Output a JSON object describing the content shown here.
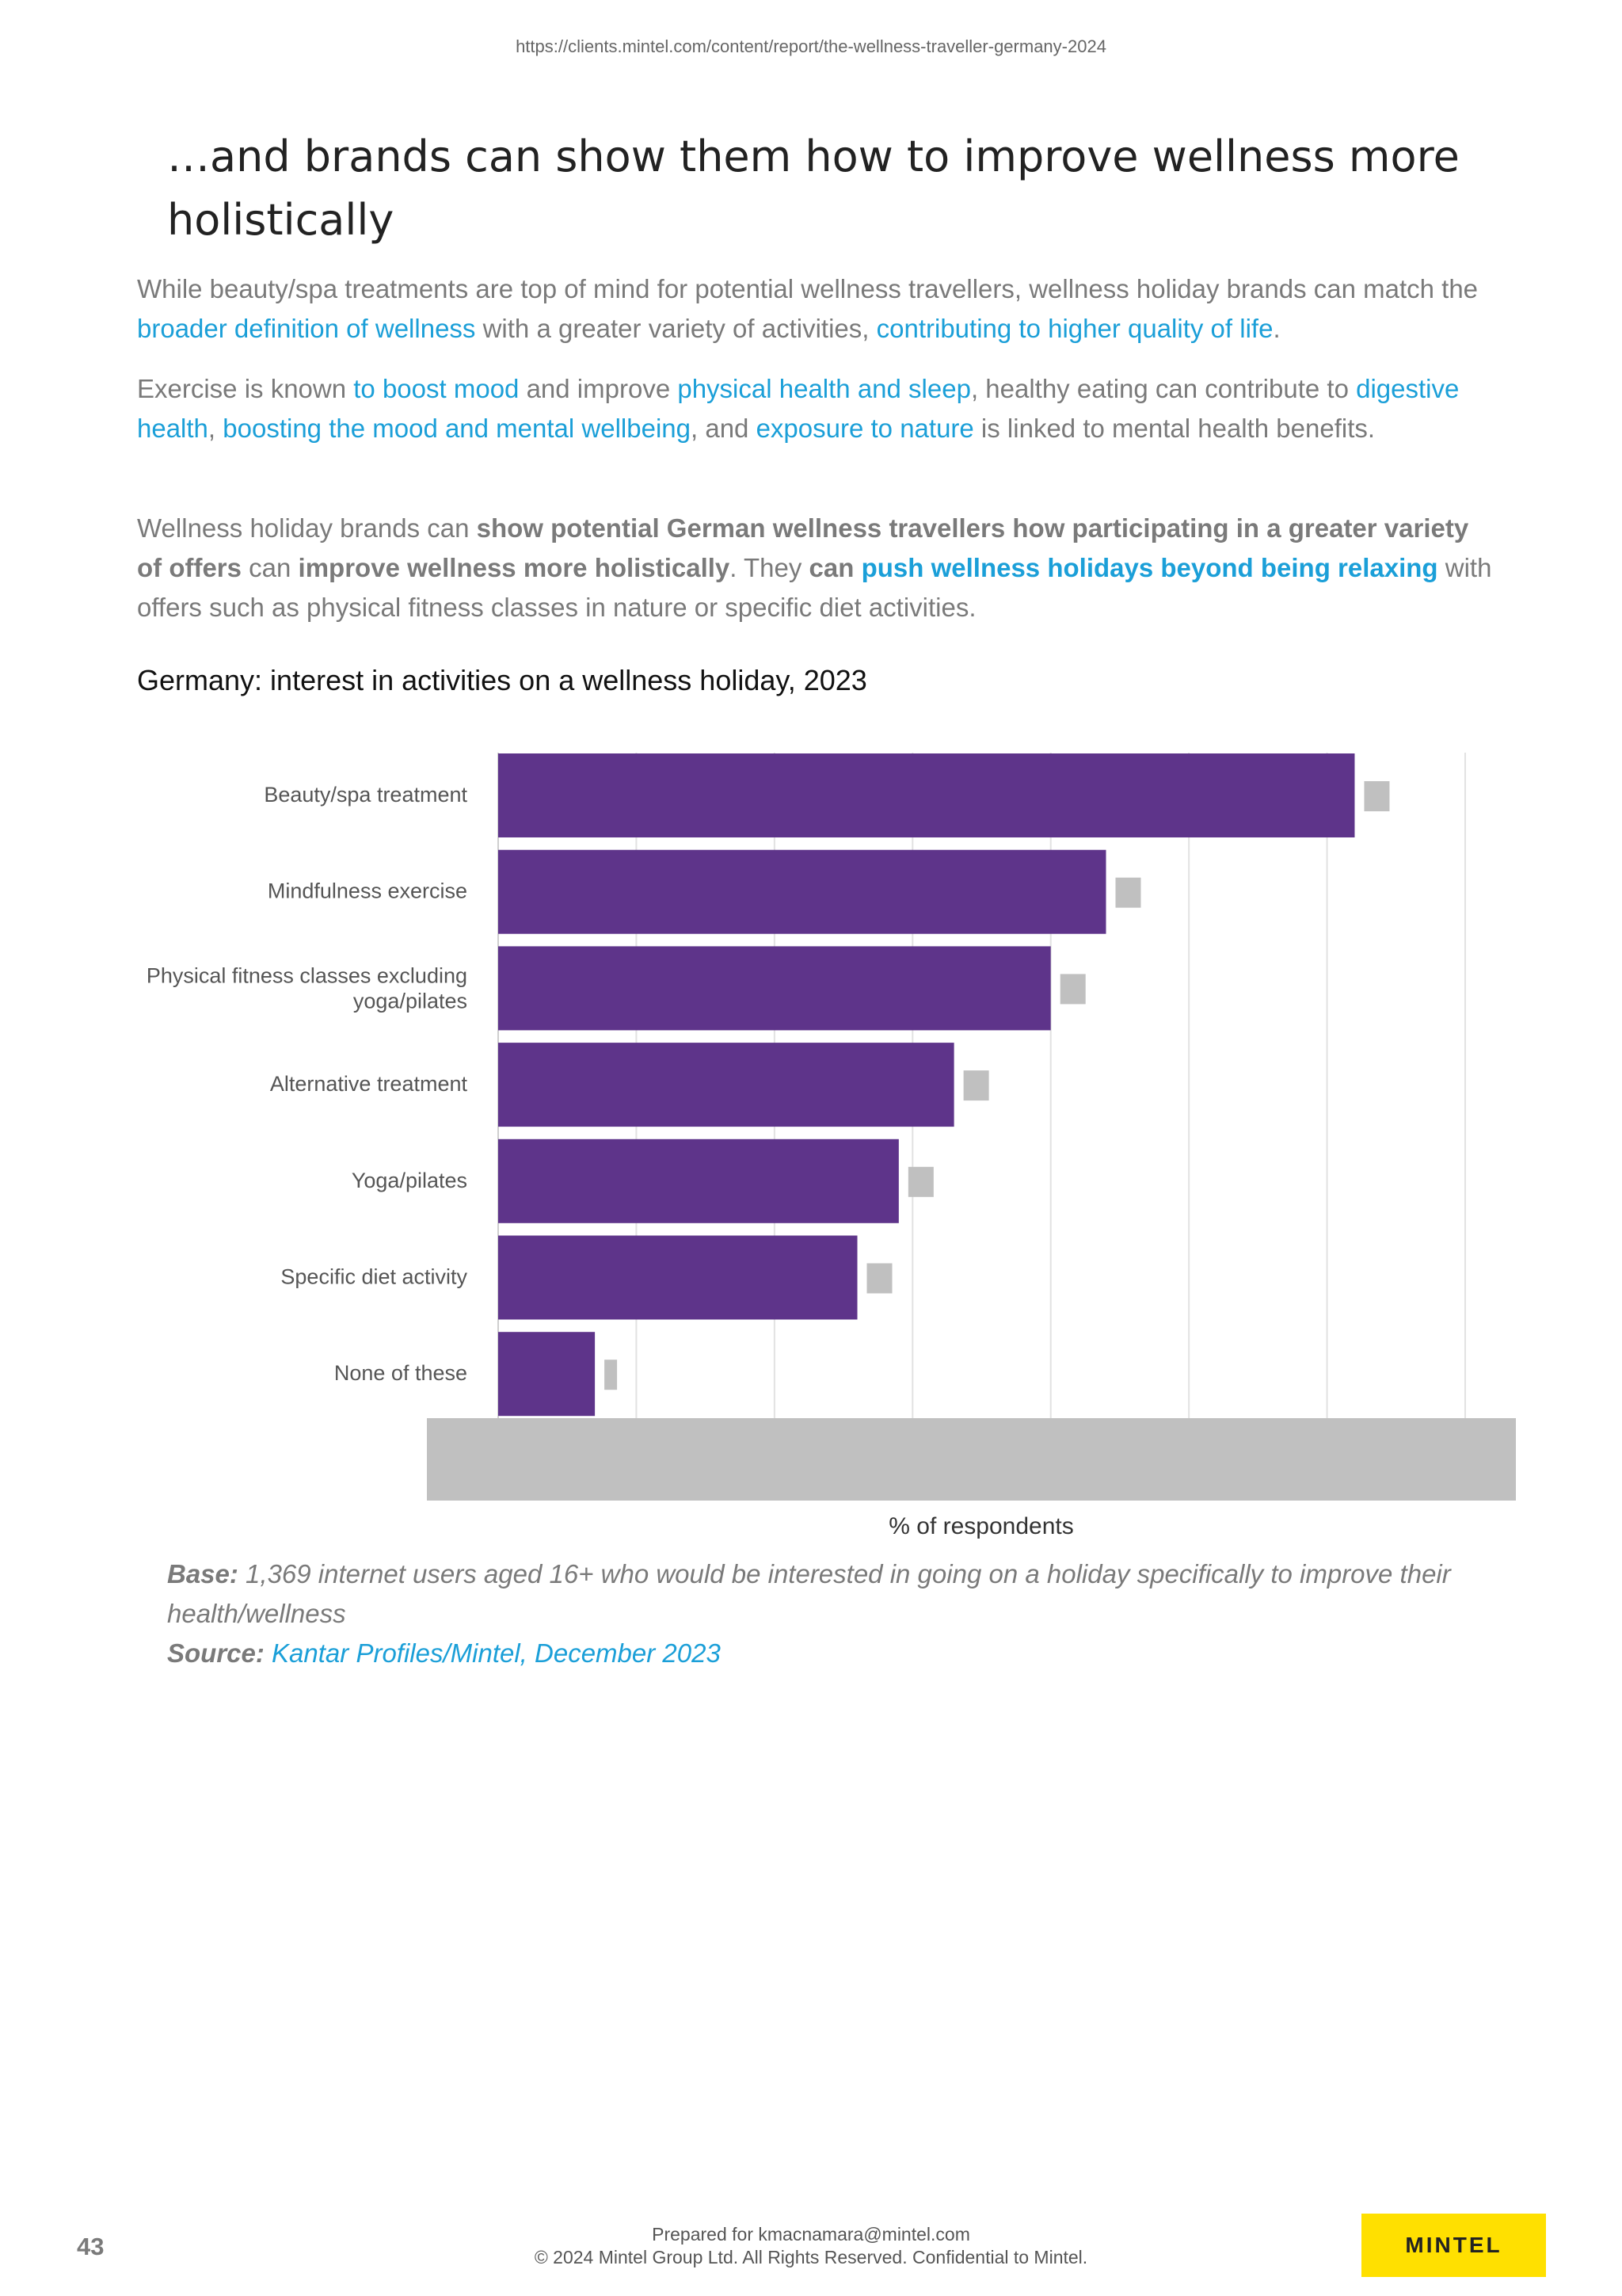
{
  "header": {
    "url": "https://clients.mintel.com/content/report/the-wellness-traveller-germany-2024"
  },
  "page": {
    "title": "…and brands can show them how to improve wellness more holistically"
  },
  "paragraph1": {
    "t1": "While beauty/spa treatments are top of mind for potential wellness travellers, wellness holiday brands can match the ",
    "link1": "broader definition of wellness",
    "t2": " with a greater variety of activities, ",
    "link2": "contributing to higher quality of life",
    "t3": "."
  },
  "paragraph2": {
    "t1": "Exercise is known ",
    "link1": "to boost mood",
    "t2": " and improve ",
    "link2": "physical health and sleep",
    "t3": ", healthy eating can contribute to ",
    "link3": "digestive health",
    "t4": ", ",
    "link4": "boosting the mood and mental wellbeing",
    "t5": ", and ",
    "link5": "exposure to nature",
    "t6": " is linked to mental health benefits."
  },
  "paragraph3": {
    "t1": "Wellness holiday brands can ",
    "b1": "show potential German wellness travellers how participating in a greater variety of offers",
    "t2": " can ",
    "b2": "improve wellness more holistically",
    "t3": ". They ",
    "b3": "can",
    "t4": " ",
    "bl1": "push wellness holidays beyond being relaxing",
    "t5": " with offers such as physical fitness classes in nature or specific diet activities."
  },
  "chart_data": {
    "type": "bar",
    "orientation": "horizontal",
    "title": "Germany: interest in activities on a wellness holiday, 2023",
    "categories": [
      "Beauty/spa treatment",
      "Mindfulness exercise",
      "Physical fitness classes excluding yoga/pilates",
      "Alternative treatment",
      "Yoga/pilates",
      "Specific diet activity",
      "None of these"
    ],
    "values": [
      62,
      44,
      40,
      33,
      29,
      26,
      7
    ],
    "xlabel": "% of respondents",
    "ylabel": "",
    "xlim": [
      0,
      70
    ],
    "gridlines": true,
    "bar_color": "#5e348a",
    "marker_color": "#c0c0c0"
  },
  "notes": {
    "base_label": "Base:",
    "base_text": " 1,369 internet users aged 16+ who would be interested in going on a holiday specifically to improve their health/wellness",
    "source_label": "Source:",
    "source_text": "Kantar Profiles/Mintel, December 2023"
  },
  "footer": {
    "page_number": "43",
    "prepared_for": "Prepared for kmacnamara@mintel.com",
    "copyright": "© 2024 Mintel Group Ltd. All Rights Reserved. Confidential to Mintel.",
    "brand": "MINTEL"
  }
}
